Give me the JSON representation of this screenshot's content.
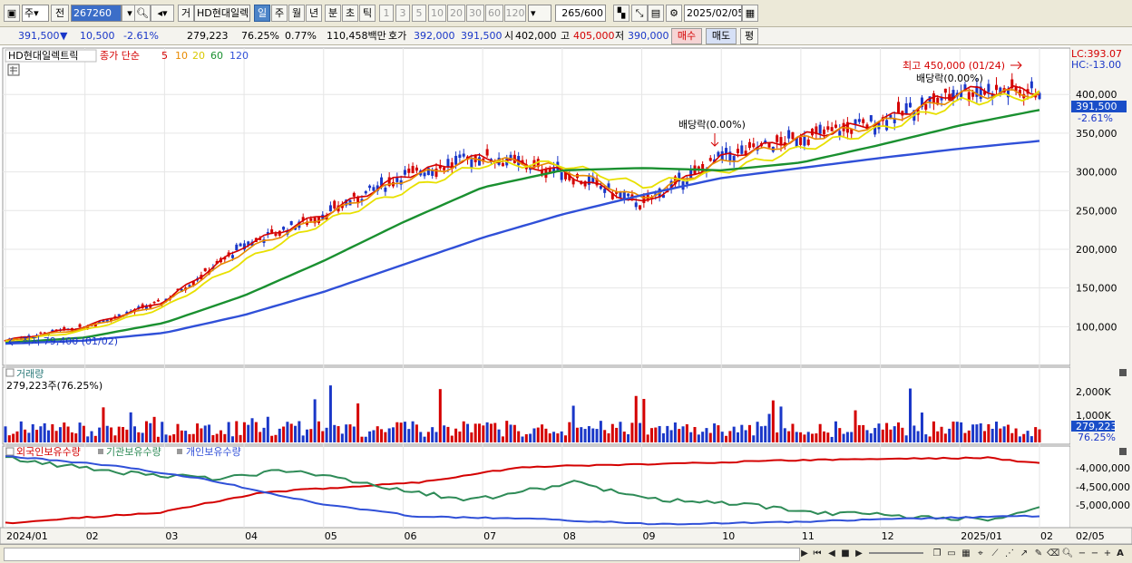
{
  "toolbar": {
    "market_code": "주",
    "prev_label": "전",
    "stock_code": "267260",
    "trade_button": "거",
    "stock_name": "HD현대일렉",
    "period_buttons": [
      "일",
      "주",
      "월",
      "년",
      "분",
      "초",
      "틱"
    ],
    "active_period": "일",
    "minute_buttons": [
      "1",
      "3",
      "5",
      "10",
      "20",
      "30",
      "60",
      "120"
    ],
    "count_display": "265",
    "count_max": "/600",
    "date_value": "2025/02/05"
  },
  "quote": {
    "price": "391,500",
    "down_arrow": "▼",
    "change": "10,500",
    "change_pct": "-2.61%",
    "volume": "279,223",
    "volume_ratio": "76.25%",
    "turnover": "0.77%",
    "amount": "110,458백만",
    "ask_label": "호가",
    "ask": "392,000",
    "bid": "391,500",
    "open_label": "시",
    "open": "402,000",
    "high_label": "고",
    "high": "405,000",
    "low_label": "저",
    "low": "390,000",
    "buy_button": "매수",
    "sell_button": "매도",
    "eval_button": "평"
  },
  "price_panel": {
    "title": "HD현대일렉트릭",
    "ma_label": "종가 단순",
    "ma_periods": [
      {
        "label": "5",
        "color": "#d40000"
      },
      {
        "label": "10",
        "color": "#e88a00"
      },
      {
        "label": "20",
        "color": "#e8e000"
      },
      {
        "label": "60",
        "color": "#1a9030"
      },
      {
        "label": "120",
        "color": "#3050d8"
      }
    ],
    "lc": "LC:393.07",
    "hc": "HC:-13.00",
    "current_price_tag": "391,500",
    "current_pct_tag": "-2.61%",
    "high_annotation": "최고 450,000 (01/24)",
    "low_annotation": "최저 79,400 (01/02)",
    "dividend_1": "배당락(0.00%)",
    "dividend_2": "배당락(0.00%)",
    "y_ticks": [
      "400,000",
      "350,000",
      "300,000",
      "250,000",
      "200,000",
      "150,000",
      "100,000"
    ]
  },
  "volume_panel": {
    "title": "거래량",
    "summary": "279,223주(76.25%)",
    "y_ticks": [
      "2,000K",
      "1,000K"
    ],
    "current_tag": "279,223",
    "current_pct": "76.25%"
  },
  "holding_panel": {
    "legend": [
      {
        "label": "외국인보유수량",
        "color": "#d40000"
      },
      {
        "label": "기관보유수량",
        "color": "#2e8b57"
      },
      {
        "label": "개인보유수량",
        "color": "#3050d8"
      }
    ],
    "y_ticks": [
      "-4,000,000",
      "-4,500,000",
      "-5,000,000"
    ]
  },
  "x_axis": {
    "labels": [
      "2024/01",
      "02",
      "03",
      "04",
      "05",
      "06",
      "07",
      "08",
      "09",
      "10",
      "11",
      "12",
      "2025/01",
      "02"
    ],
    "right_label": "02/05"
  },
  "colors": {
    "up": "#d40000",
    "down": "#1a37c8",
    "ma5": "#d40000",
    "ma10": "#e88a00",
    "ma20": "#e8e000",
    "ma60": "#1a9030",
    "ma120": "#3050d8"
  },
  "chart_data": {
    "type": "line",
    "x": [
      "2024/01",
      "02",
      "03",
      "04",
      "05",
      "06",
      "07",
      "08",
      "09",
      "10",
      "11",
      "12",
      "2025/01",
      "02"
    ],
    "series": [
      {
        "name": "5",
        "values": [
          82000,
          100000,
          133000,
          205000,
          245000,
          295000,
          320000,
          300000,
          258000,
          318000,
          345000,
          365000,
          405000,
          405000
        ]
      },
      {
        "name": "10",
        "values": [
          81000,
          98000,
          130000,
          198000,
          242000,
          290000,
          318000,
          305000,
          265000,
          312000,
          342000,
          362000,
          400000,
          402000
        ]
      },
      {
        "name": "20",
        "values": [
          80000,
          95000,
          125000,
          185000,
          235000,
          275000,
          310000,
          310000,
          282000,
          300000,
          330000,
          355000,
          390000,
          400000
        ]
      },
      {
        "name": "60",
        "values": [
          79000,
          86000,
          105000,
          140000,
          185000,
          235000,
          280000,
          302000,
          305000,
          302000,
          312000,
          335000,
          360000,
          380000
        ]
      },
      {
        "name": "120",
        "values": [
          78000,
          82000,
          92000,
          115000,
          145000,
          180000,
          215000,
          245000,
          270000,
          292000,
          305000,
          318000,
          330000,
          340000
        ]
      }
    ],
    "ylim": [
      50000,
      460000
    ]
  }
}
